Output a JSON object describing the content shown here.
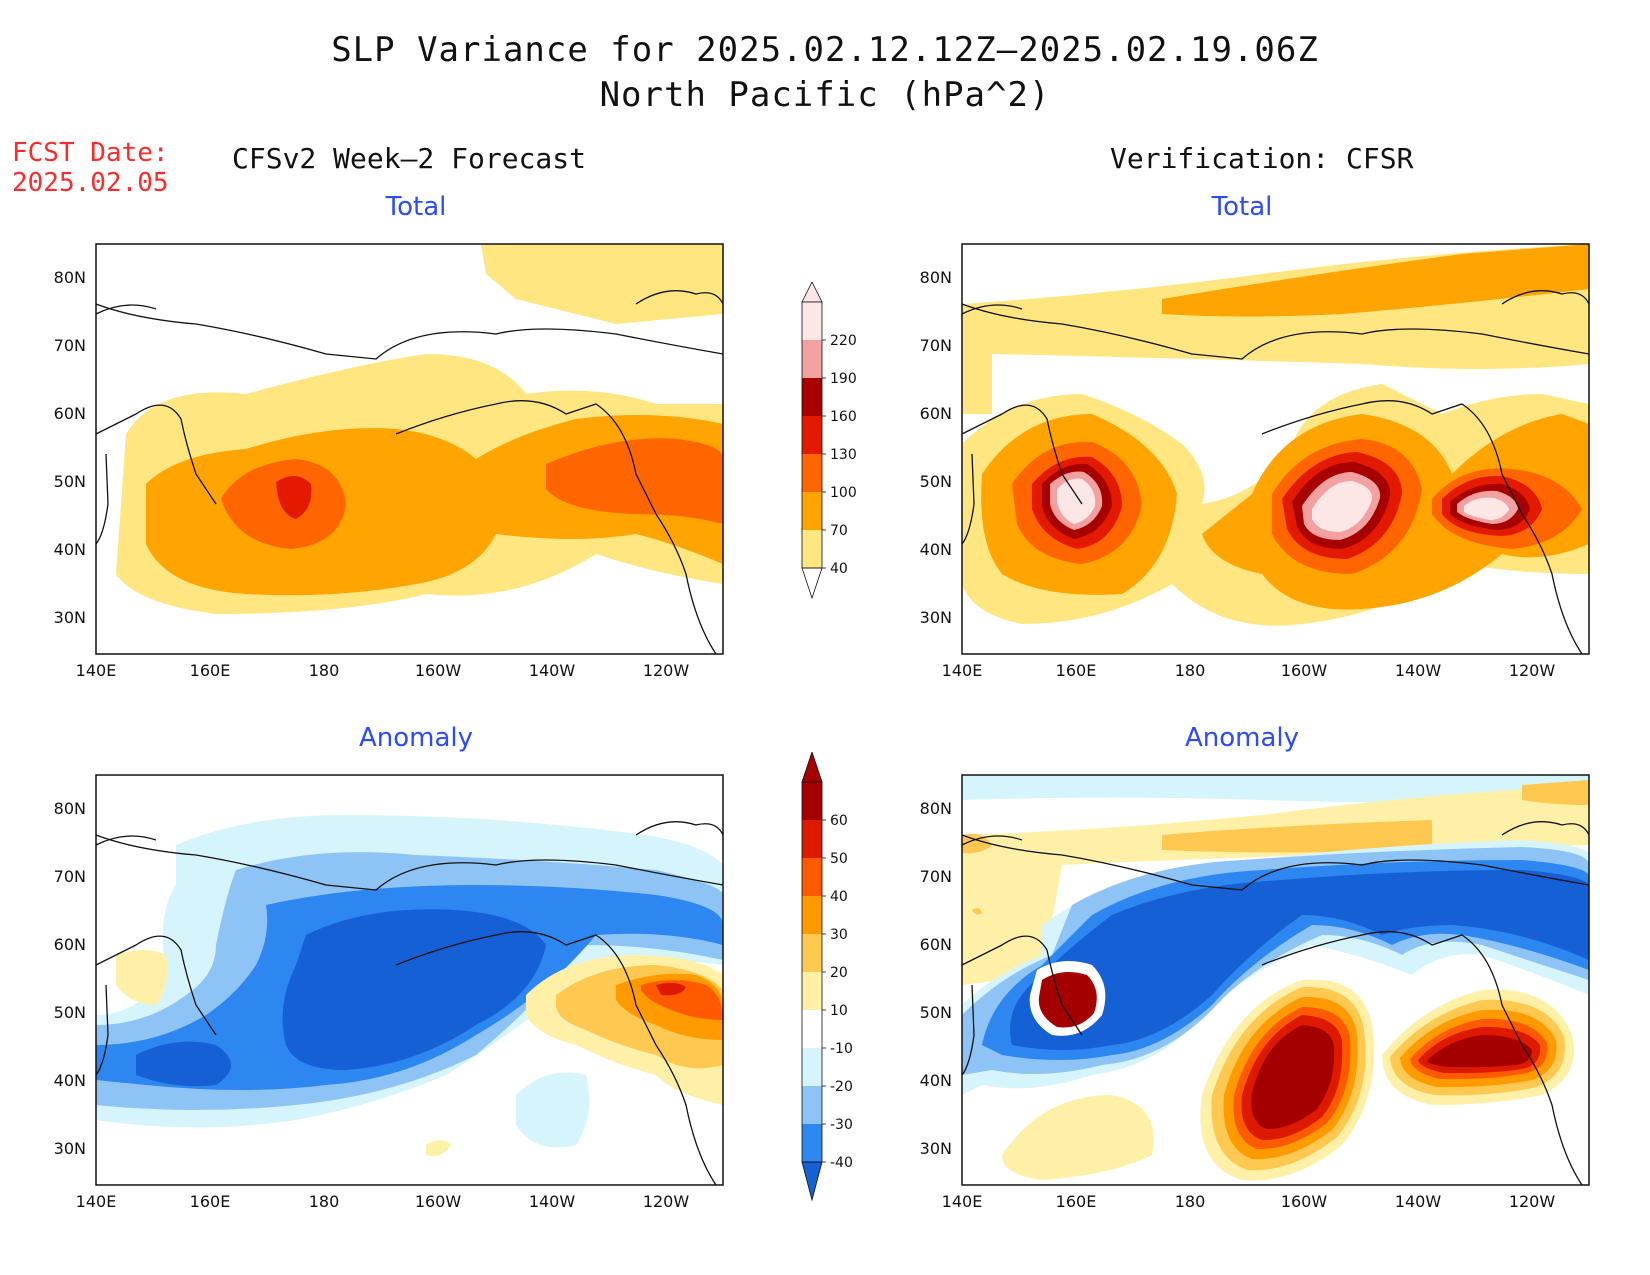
{
  "title_line1": "SLP Variance for 2025.02.12.12Z–2025.02.19.06Z",
  "title_line2": "North Pacific (hPa^2)",
  "fcst_label": "FCST Date:",
  "fcst_date": "2025.02.05",
  "left_column_title": "CFSv2 Week–2 Forecast",
  "right_column_title": "Verification: CFSR",
  "panel_titles": {
    "total": "Total",
    "anomaly": "Anomaly"
  },
  "axes": {
    "lat_labels": [
      "80N",
      "70N",
      "60N",
      "50N",
      "40N",
      "30N"
    ],
    "lon_labels": [
      "140E",
      "160E",
      "180",
      "160W",
      "140W",
      "120W"
    ],
    "lat_range": [
      25,
      85
    ],
    "lon_range_east": [
      140,
      250
    ]
  },
  "total_colorbar": {
    "levels": [
      "40",
      "70",
      "100",
      "130",
      "160",
      "190",
      "220"
    ],
    "colors": [
      "#ffe680",
      "#ffa400",
      "#ff6600",
      "#e41a00",
      "#a80000",
      "#f2a0a0",
      "#fde6e6"
    ]
  },
  "anomaly_colorbar": {
    "levels": [
      "-40",
      "-30",
      "-20",
      "-10",
      "10",
      "20",
      "30",
      "40",
      "50",
      "60"
    ],
    "colors": [
      "#1560d4",
      "#2e86f0",
      "#8ec4f5",
      "#d6f4fc",
      "#ffffff",
      "#fff0a8",
      "#ffc850",
      "#ff9a00",
      "#ff5a00",
      "#dd1a00",
      "#a50000"
    ]
  }
}
